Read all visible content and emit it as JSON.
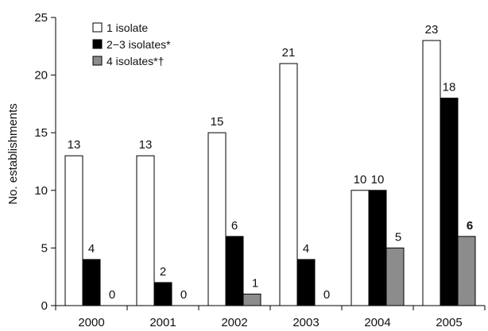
{
  "chart_data": {
    "type": "bar",
    "title": "",
    "xlabel": "",
    "ylabel": "No. establishments",
    "ylim": [
      0,
      25
    ],
    "yticks": [
      0,
      5,
      10,
      15,
      20,
      25
    ],
    "categories": [
      "2000",
      "2001",
      "2002",
      "2003",
      "2004",
      "2005"
    ],
    "series": [
      {
        "name": "1 isolate",
        "color": "#ffffff",
        "values": [
          13,
          13,
          15,
          21,
          10,
          23
        ],
        "labels": [
          "13",
          "13",
          "15",
          "21",
          "10",
          "23"
        ]
      },
      {
        "name": "2−3 isolates*",
        "color": "#000000",
        "values": [
          4,
          2,
          6,
          4,
          10,
          18
        ],
        "labels": [
          "4",
          "2",
          "6",
          "4",
          "10",
          "18"
        ]
      },
      {
        "name": "4 isolates*†",
        "color": "#8c8c8c",
        "values": [
          0,
          0,
          1,
          0,
          5,
          6
        ],
        "labels": [
          "0",
          "0",
          "1",
          "0",
          "5",
          "6"
        ],
        "bold_last_label": true
      }
    ],
    "legend_position": "top-left",
    "grid": false
  }
}
